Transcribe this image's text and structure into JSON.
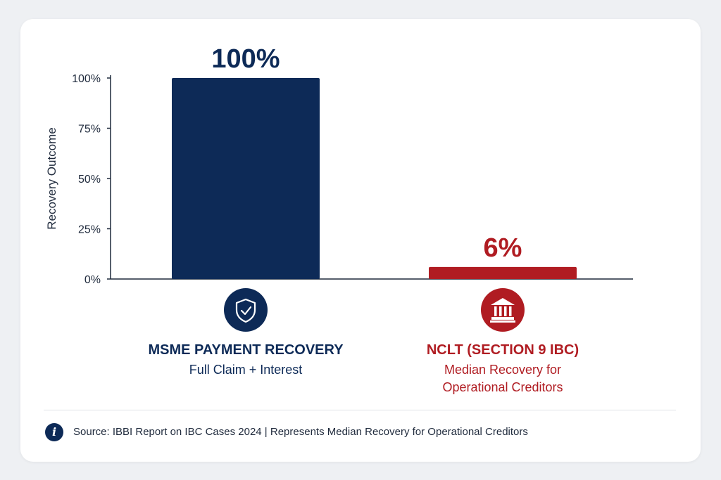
{
  "chart_data": {
    "type": "bar",
    "ylabel": "Recovery Outcome",
    "ylim": [
      0,
      100
    ],
    "yticks": [
      "0%",
      "25%",
      "50%",
      "75%",
      "100%"
    ],
    "ytick_values": [
      0,
      25,
      50,
      75,
      100
    ],
    "grid": false,
    "categories": [
      {
        "title": "MSME PAYMENT RECOVERY",
        "subtitle": [
          "Full Claim + Interest"
        ],
        "value": 100,
        "value_label": "100%",
        "color": "#0d2a57",
        "icon": "shield-check-icon"
      },
      {
        "title": "NCLT (SECTION 9 IBC)",
        "subtitle": [
          "Median Recovery for",
          "Operational Creditors"
        ],
        "value": 6,
        "value_label": "6%",
        "color": "#b01c22",
        "icon": "bank-building-icon"
      }
    ]
  },
  "footer": {
    "info_icon": "i",
    "source": "Source: IBBI Report on IBC Cases 2024 | Represents Median Recovery for Operational Creditors"
  }
}
